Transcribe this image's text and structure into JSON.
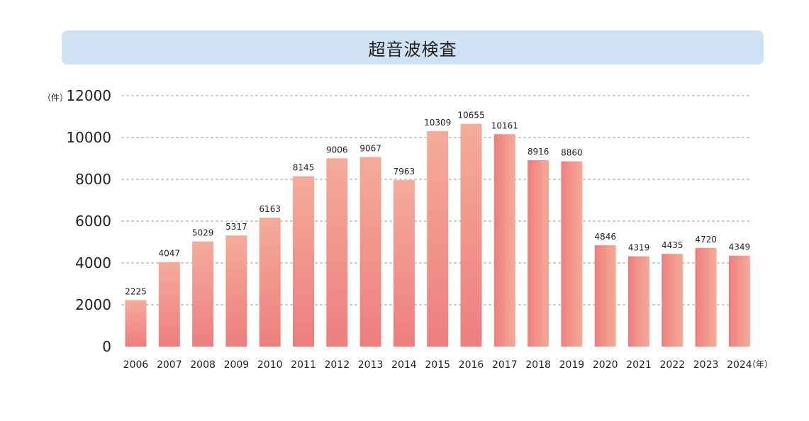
{
  "chart_data": {
    "type": "bar",
    "title": "超音波検査",
    "y_unit": "（件）",
    "x_unit": "（年）",
    "categories": [
      "2006",
      "2007",
      "2008",
      "2009",
      "2010",
      "2011",
      "2012",
      "2013",
      "2014",
      "2015",
      "2016",
      "2017",
      "2018",
      "2019",
      "2020",
      "2021",
      "2022",
      "2023",
      "2024"
    ],
    "values": [
      2225,
      4047,
      5029,
      5317,
      6163,
      8145,
      9006,
      9067,
      7963,
      10309,
      10655,
      10161,
      8916,
      8860,
      4846,
      4319,
      4435,
      4720,
      4349
    ],
    "ylim": [
      0,
      12000
    ],
    "yticks": [
      0,
      2000,
      4000,
      6000,
      8000,
      10000,
      12000
    ],
    "grid": true,
    "colors": {
      "bar_top": "#f3a898",
      "bar_bottom": "#ee7d7d",
      "grid": "#c8c8c8",
      "banner": "#cfe2f3"
    }
  }
}
